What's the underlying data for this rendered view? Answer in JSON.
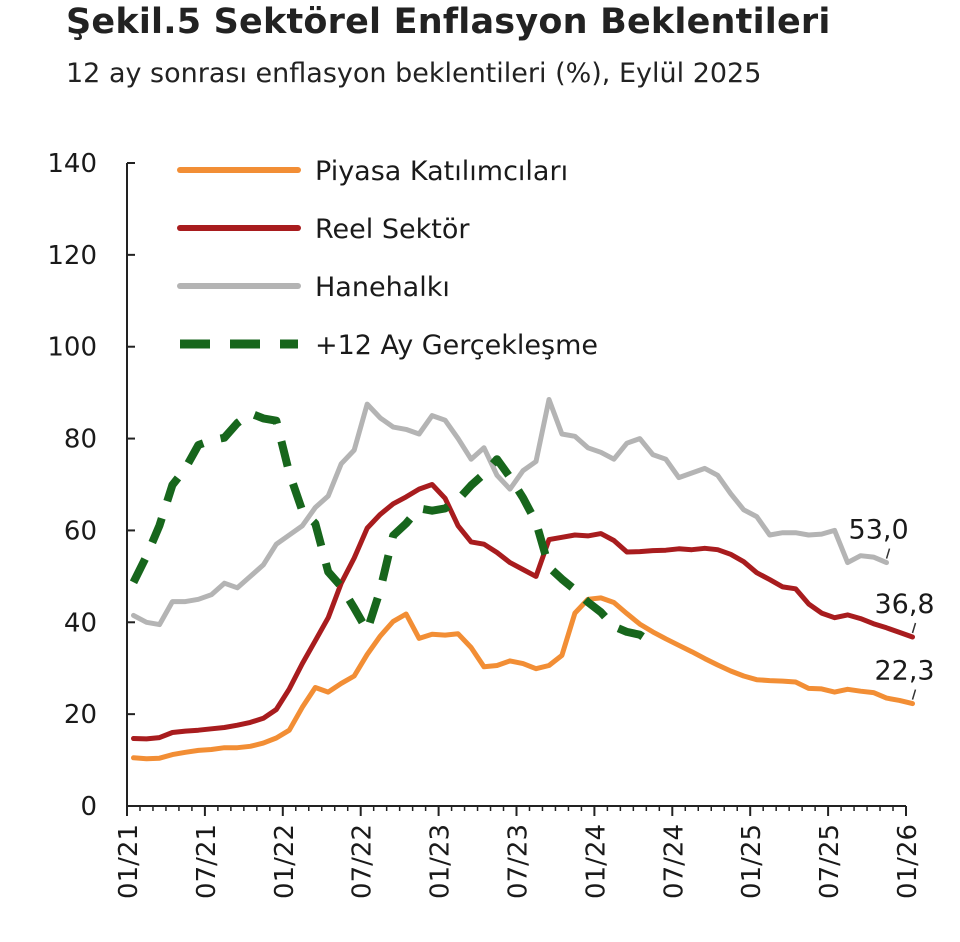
{
  "chart_data": {
    "type": "line",
    "title": "Şekil.5 Sektörel Enflasyon Beklentileri",
    "subtitle": "12 ay sonrası enflasyon beklentileri (%), Eylül 2025",
    "ylim": [
      0,
      140
    ],
    "yticks": [
      "0",
      "20",
      "40",
      "60",
      "80",
      "100",
      "120",
      "140"
    ],
    "xticks": [
      "01/21",
      "07/21",
      "01/22",
      "07/22",
      "01/23",
      "07/23",
      "01/24",
      "07/24",
      "01/25",
      "07/25",
      "01/26"
    ],
    "x_start": "2021-01",
    "legend_position": "top-left",
    "series": [
      {
        "name": "Piyasa Katılımcıları",
        "color": "#f28e35",
        "style": "solid",
        "end_label": "22,3",
        "values": [
          10.5,
          10.3,
          10.4,
          11.2,
          11.7,
          12.1,
          12.3,
          12.7,
          12.7,
          13.0,
          13.7,
          14.8,
          16.5,
          21.5,
          25.8,
          24.8,
          26.7,
          28.3,
          33.0,
          37.0,
          40.2,
          41.8,
          36.5,
          37.4,
          37.2,
          37.5,
          34.5,
          30.3,
          30.6,
          31.6,
          31.0,
          29.9,
          30.6,
          32.8,
          42.0,
          45.0,
          45.3,
          44.3,
          41.9,
          39.6,
          37.9,
          36.4,
          35.0,
          33.6,
          32.1,
          30.7,
          29.4,
          28.3,
          27.5,
          27.3,
          27.2,
          27.0,
          25.6,
          25.5,
          24.8,
          25.4,
          25.0,
          24.7,
          23.5,
          23.0,
          22.3
        ]
      },
      {
        "name": "Reel Sektör",
        "color": "#a81c1e",
        "style": "solid",
        "end_label": "36,8",
        "values": [
          14.7,
          14.6,
          14.9,
          16.0,
          16.3,
          16.5,
          16.8,
          17.1,
          17.6,
          18.2,
          19.1,
          21.0,
          25.5,
          31.0,
          36.0,
          41.0,
          48.5,
          54.0,
          60.5,
          63.5,
          65.8,
          67.3,
          69.0,
          70.0,
          67.0,
          61.0,
          57.5,
          57.0,
          55.2,
          53.0,
          51.5,
          50.0,
          58.0,
          58.5,
          59.0,
          58.8,
          59.3,
          57.8,
          55.3,
          55.4,
          55.6,
          55.7,
          56.0,
          55.8,
          56.1,
          55.8,
          54.8,
          53.2,
          50.8,
          49.3,
          47.7,
          47.3,
          44.0,
          42.0,
          41.0,
          41.6,
          40.8,
          39.7,
          38.8,
          37.8,
          36.8
        ]
      },
      {
        "name": "Hanehalkı",
        "color": "#b4b4b4",
        "style": "solid",
        "end_label": "53,0",
        "values": [
          41.5,
          40.0,
          39.5,
          44.5,
          44.5,
          45.0,
          46.0,
          48.5,
          47.5,
          50.0,
          52.5,
          57.0,
          59.0,
          61.0,
          65.0,
          67.5,
          74.5,
          77.5,
          87.5,
          84.5,
          82.5,
          82.0,
          81.0,
          85.0,
          84.0,
          80.0,
          75.5,
          78.0,
          72.0,
          69.0,
          73.0,
          75.0,
          88.5,
          81.0,
          80.5,
          78.0,
          77.0,
          75.5,
          79.0,
          80.0,
          76.5,
          75.5,
          71.5,
          72.5,
          73.5,
          72.0,
          68.0,
          64.5,
          63.0,
          59.0,
          59.5,
          59.5,
          59.0,
          59.2,
          60.0,
          53.0,
          54.5,
          54.2,
          53.0
        ]
      },
      {
        "name": "+12 Ay Gerçekleşme",
        "color": "#17661c",
        "style": "dashed",
        "values": [
          48.7,
          54.4,
          61.1,
          69.9,
          73.5,
          78.6,
          79.6,
          80.2,
          83.4,
          85.5,
          84.4,
          83.9,
          72.5,
          64.3,
          61.5,
          51.0,
          47.8,
          43.1,
          38.2,
          47.0,
          58.9,
          61.5,
          64.8,
          64.3,
          64.8,
          66.7,
          69.8,
          72.3,
          75.5,
          71.6,
          67.1,
          61.8,
          52.0,
          49.4,
          47.1,
          44.4,
          42.2,
          39.1,
          37.9,
          37.3,
          35.4
        ]
      }
    ]
  }
}
